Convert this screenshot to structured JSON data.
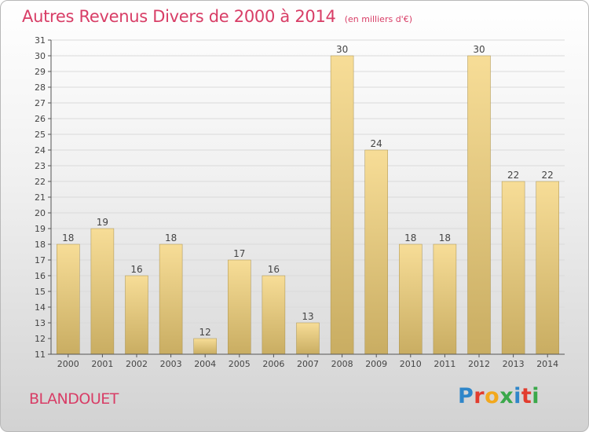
{
  "header": {
    "title": "Autres Revenus Divers de 2000 à 2014",
    "subtitle": "(en milliers d'€)"
  },
  "footer": {
    "place": "BLANDOUET",
    "logo": {
      "letters": [
        "P",
        "r",
        "o",
        "x",
        "i",
        "t",
        "i"
      ],
      "colors": [
        "#2f86c9",
        "#e23c2e",
        "#f2a81d",
        "#3aa84a",
        "#2f86c9",
        "#e23c2e",
        "#3aa84a"
      ]
    }
  },
  "colors": {
    "bar_light": "#f7dd97",
    "bar_dark": "#c9ad62",
    "bar_edge": "#a8914f",
    "axis": "#555555",
    "grid": "#dadada",
    "text": "#444444",
    "title": "#d83d66"
  },
  "chart_data": {
    "type": "bar",
    "title": "Autres Revenus Divers de 2000 à 2014",
    "subtitle": "(en milliers d'€)",
    "categories": [
      "2000",
      "2001",
      "2002",
      "2003",
      "2004",
      "2005",
      "2006",
      "2007",
      "2008",
      "2009",
      "2010",
      "2011",
      "2012",
      "2013",
      "2014"
    ],
    "values": [
      18,
      19,
      16,
      18,
      12,
      17,
      16,
      13,
      30,
      24,
      18,
      18,
      30,
      22,
      22
    ],
    "ylim": [
      11,
      31
    ],
    "yticks": [
      11,
      12,
      13,
      14,
      15,
      16,
      17,
      18,
      19,
      20,
      21,
      22,
      23,
      24,
      25,
      26,
      27,
      28,
      29,
      30,
      31
    ],
    "grid": true,
    "data_labels": true
  }
}
